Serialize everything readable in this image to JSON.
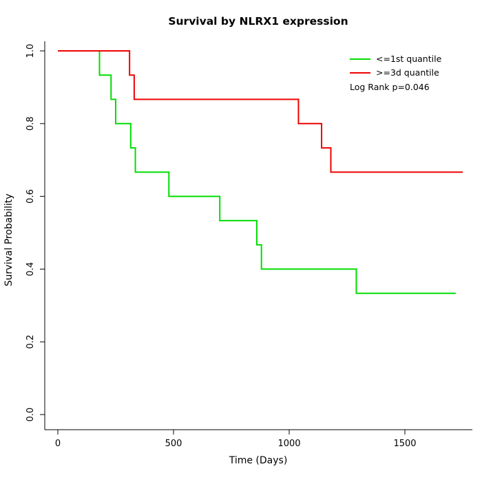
{
  "chart_data": {
    "type": "line",
    "subtype": "kaplan-meier-step",
    "title": "Survival by NLRX1 expression",
    "xlabel": "Time (Days)",
    "ylabel": "Survival Probability",
    "xlim": [
      0,
      1750
    ],
    "ylim": [
      0,
      1
    ],
    "grid": false,
    "x_ticks": [
      {
        "value": 0,
        "label": "0"
      },
      {
        "value": 500,
        "label": "500"
      },
      {
        "value": 1000,
        "label": "1000"
      },
      {
        "value": 1500,
        "label": "1500"
      }
    ],
    "y_ticks": [
      {
        "value": 0.0,
        "label": "0.0"
      },
      {
        "value": 0.2,
        "label": "0.2"
      },
      {
        "value": 0.4,
        "label": "0.4"
      },
      {
        "value": 0.6,
        "label": "0.6"
      },
      {
        "value": 0.8,
        "label": "0.8"
      },
      {
        "value": 1.0,
        "label": "1.0"
      }
    ],
    "legend": {
      "position": "top-right",
      "items": [
        {
          "label": "<=1st quantile",
          "color": "#00dd00"
        },
        {
          "label": ">=3d quantile",
          "color": "#ee0000"
        }
      ],
      "annotation": "Log Rank p=0.046"
    },
    "series": [
      {
        "name": "<=1st quantile",
        "color": "#00dd00",
        "step": true,
        "points": [
          [
            0,
            1.0
          ],
          [
            180,
            0.9333
          ],
          [
            230,
            0.8667
          ],
          [
            250,
            0.8
          ],
          [
            315,
            0.7333
          ],
          [
            335,
            0.6667
          ],
          [
            480,
            0.6
          ],
          [
            700,
            0.5333
          ],
          [
            860,
            0.4667
          ],
          [
            880,
            0.4
          ],
          [
            1290,
            0.3333
          ],
          [
            1720,
            0.3333
          ]
        ]
      },
      {
        "name": ">=3d quantile",
        "color": "#ee0000",
        "step": true,
        "points": [
          [
            0,
            1.0
          ],
          [
            310,
            0.9333
          ],
          [
            330,
            0.8667
          ],
          [
            1040,
            0.8
          ],
          [
            1140,
            0.7333
          ],
          [
            1180,
            0.6667
          ],
          [
            1750,
            0.6667
          ]
        ]
      }
    ]
  }
}
